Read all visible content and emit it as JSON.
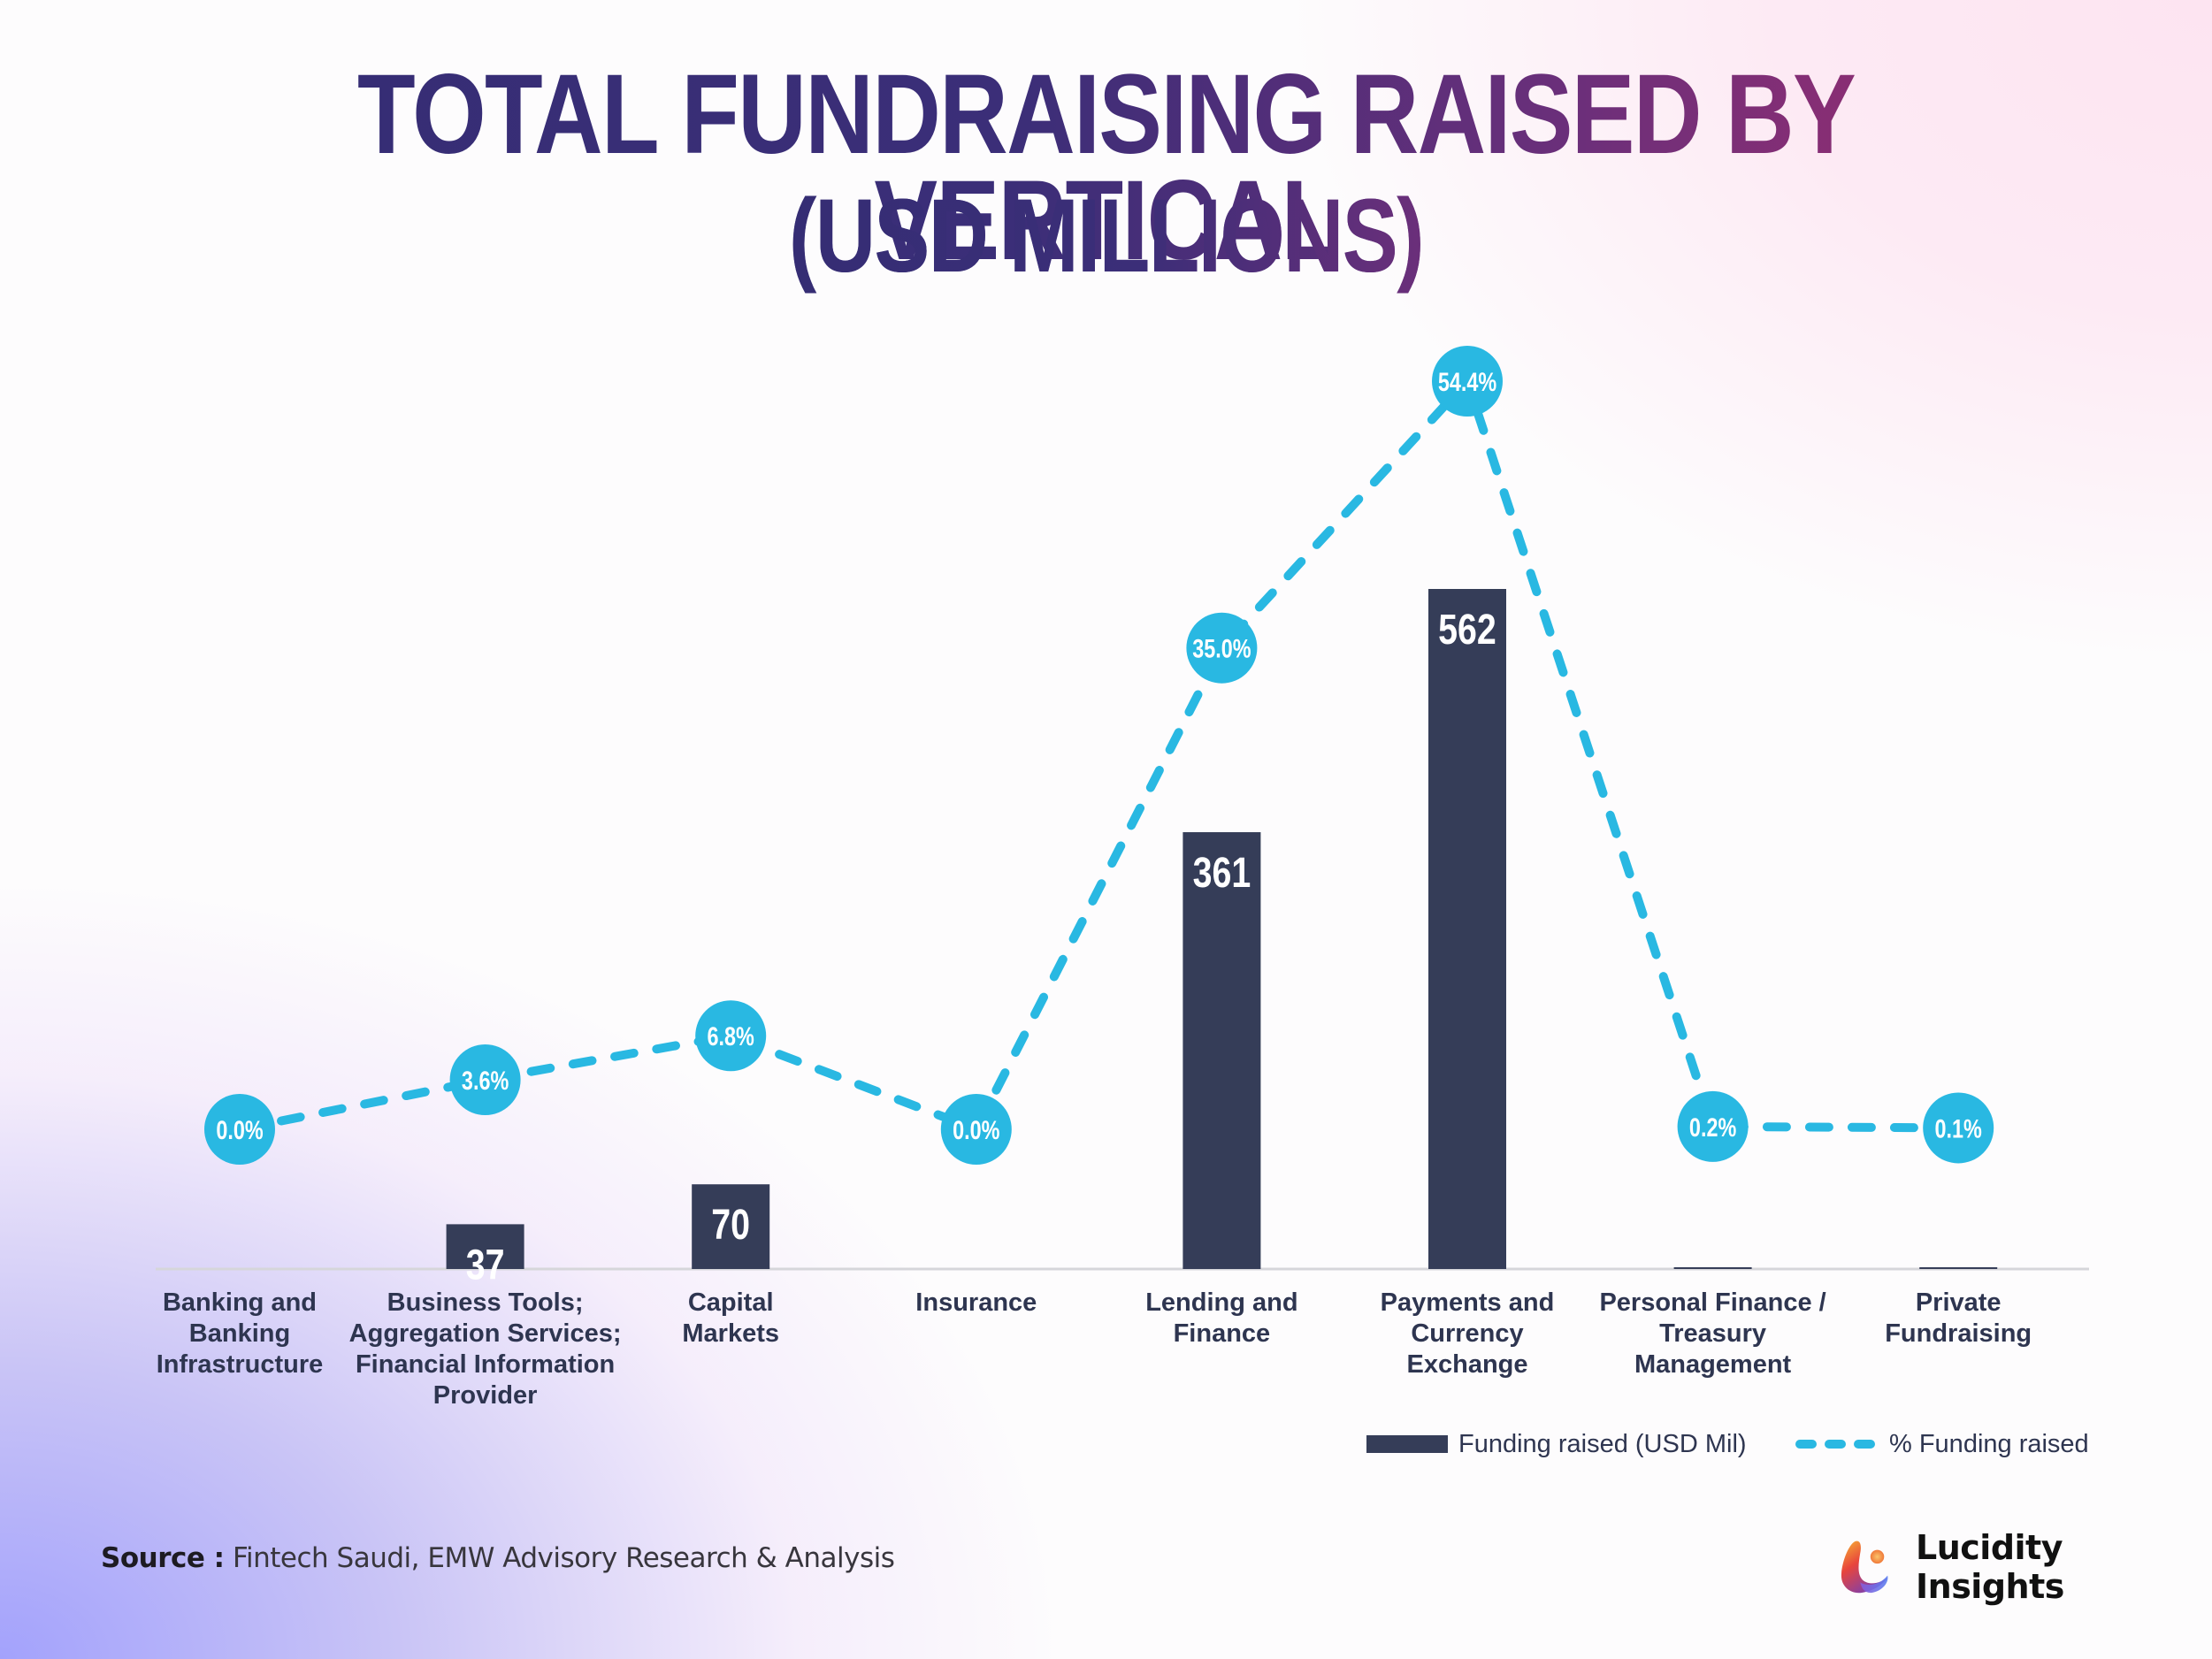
{
  "title": {
    "line1": "TOTAL FUNDRAISING RAISED BY VERTICAL",
    "line2": "(USD MILLIONS)"
  },
  "colors": {
    "bar": "#353d58",
    "line": "#29b8e2",
    "marker": "#29b8e2",
    "axis": "#d6d6da",
    "label": "#2e3550",
    "title_start": "#352d74",
    "title_end": "#9c2e70"
  },
  "chart_data": {
    "type": "bar+line",
    "title": "Total Fundraising Raised by Vertical (USD Millions)",
    "xlabel": "",
    "ylabel": "",
    "categories": [
      "Banking and Banking Infrastructure",
      "Business Tools; Aggregation Services; Financial Information Provider",
      "Capital Markets",
      "Insurance",
      "Lending and Finance",
      "Payments and Currency Exchange",
      "Personal Finance / Treasury Management",
      "Private Fundraising"
    ],
    "series": [
      {
        "name": "Funding raised (USD Mil)",
        "type": "bar",
        "values": [
          0,
          37,
          70,
          0,
          361,
          562,
          1,
          1
        ],
        "labels": [
          "",
          "37",
          "70",
          "",
          "361",
          "562",
          "",
          ""
        ]
      },
      {
        "name": "% Funding raised",
        "type": "line",
        "style": "dashed",
        "values": [
          0.0,
          3.6,
          6.8,
          0.0,
          35.0,
          54.4,
          0.2,
          0.1
        ],
        "labels": [
          "0.0%",
          "3.6%",
          "6.8%",
          "0.0%",
          "35.0%",
          "54.4%",
          "0.2%",
          "0.1%"
        ]
      }
    ],
    "grid": false,
    "legend_position": "bottom-right"
  },
  "axis_labels": [
    "Banking and\nBanking\nInfrastructure",
    "Business Tools;\nAggregation Services;\nFinancial Information\nProvider",
    "Capital\nMarkets",
    "Insurance",
    "Lending and\nFinance",
    "Payments and\nCurrency\nExchange",
    "Personal Finance /\nTreasury\nManagement",
    "Private\nFundraising"
  ],
  "legend": {
    "bar_label": "Funding raised (USD Mil)",
    "line_label": "% Funding raised"
  },
  "footer": {
    "source_prefix": "Source :",
    "source_text": "Fintech Saudi, EMW Advisory Research & Analysis",
    "brand_name": "Lucidity Insights",
    "brand_icon": "lucidity-logo"
  }
}
